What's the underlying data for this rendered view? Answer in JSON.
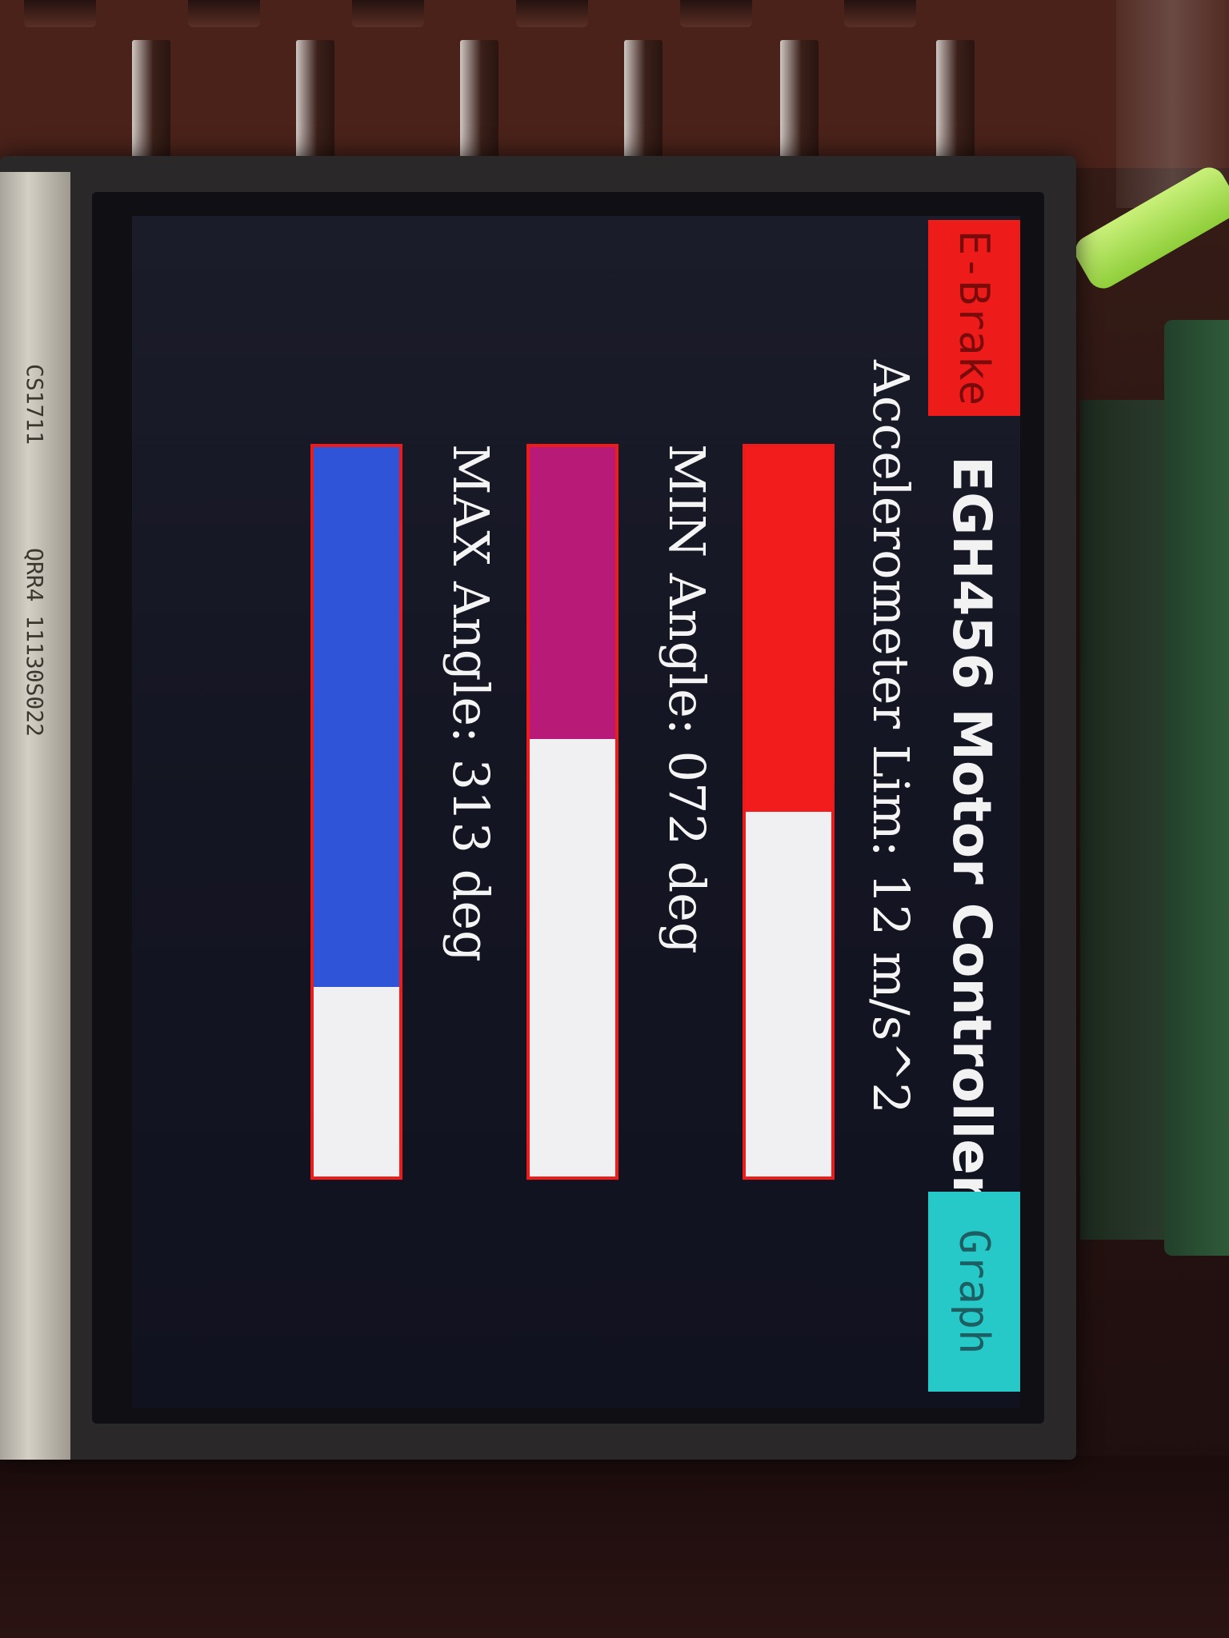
{
  "screen": {
    "title": "EGH456 Motor Controller",
    "buttons": {
      "ebrake": {
        "label": "E-Brake",
        "color": "#ee1b1b"
      },
      "graph": {
        "label": "Graph",
        "color": "#27c8c8"
      }
    },
    "gauges": [
      {
        "label": "Accelerometer Lim: 12 m/s^2",
        "fraction": 0.5,
        "color": "#f21c1c"
      },
      {
        "label": "MIN Angle: 072 deg",
        "fraction": 0.4,
        "color": "#b81a78"
      },
      {
        "label": "MAX Angle: 313 deg",
        "fraction": 0.74,
        "color": "#2f54d8"
      }
    ]
  },
  "hardware": {
    "ribbon_text_1": "CS1711",
    "ribbon_text_2": "QRR4 11130S022"
  }
}
